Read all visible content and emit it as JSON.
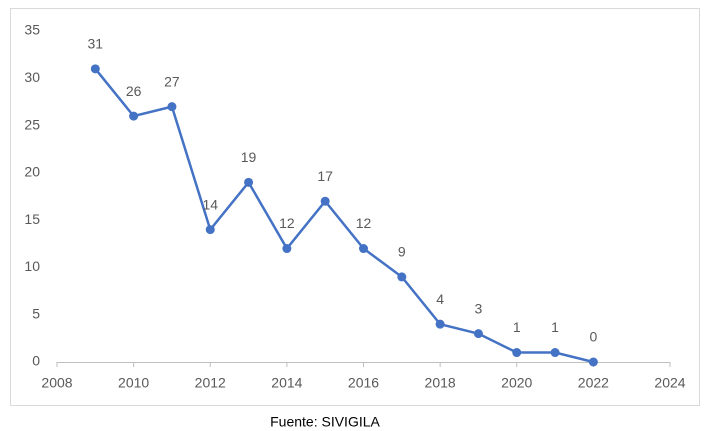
{
  "chart_data": {
    "type": "line",
    "x": [
      2009,
      2010,
      2011,
      2012,
      2013,
      2014,
      2015,
      2016,
      2017,
      2018,
      2019,
      2020,
      2021,
      2022
    ],
    "series": [
      {
        "color": "#4472c4",
        "values": [
          31,
          26,
          27,
          14,
          19,
          12,
          17,
          12,
          9,
          4,
          3,
          1,
          1,
          0
        ]
      }
    ],
    "xlim": [
      2008,
      2024
    ],
    "xticks": [
      2008,
      2010,
      2012,
      2014,
      2016,
      2018,
      2020,
      2022,
      2024
    ],
    "ylim": [
      0,
      35
    ],
    "yticks": [
      0,
      5,
      10,
      15,
      20,
      25,
      30,
      35
    ],
    "grid": false,
    "source": "Fuente: SIVIGILA"
  }
}
